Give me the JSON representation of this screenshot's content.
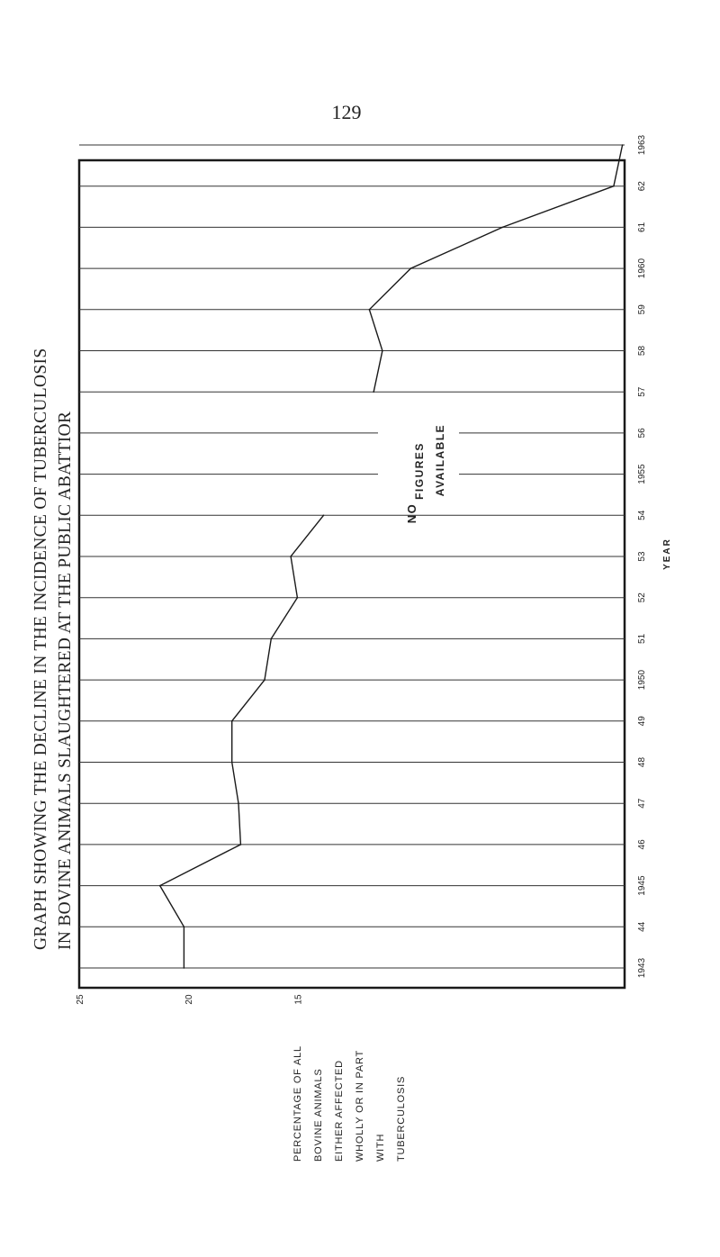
{
  "page_number": "129",
  "title_lines": [
    "GRAPH SHOWING THE DECLINE IN THE INCIDENCE OF TUBERCULOSIS",
    "IN BOVINE ANIMALS SLAUGHTERED AT THE PUBLIC ABATTIOR"
  ],
  "ylabel_lines": [
    "PERCENTAGE OF ALL",
    "BOVINE ANIMALS",
    "EITHER AFFECTED",
    "WHOLLY OR IN PART",
    "WITH",
    "TUBERCULOSIS"
  ],
  "annotation_lines": [
    "NO",
    "FIGURES",
    "AVAILABLE"
  ],
  "chart_data": {
    "type": "line",
    "title": "GRAPH SHOWING THE DECLINE IN THE INCIDENCE OF TUBERCULOSIS IN BOVINE ANIMALS SLAUGHTERED AT THE PUBLIC ABATTIOR",
    "xlabel": "YEAR",
    "ylabel": "PERCENTAGE OF ALL BOVINE ANIMALS EITHER AFFECTED WHOLLY OR IN PART WITH TUBERCULOSIS",
    "x": [
      "1943",
      "44",
      "1945",
      "46",
      "47",
      "48",
      "49",
      "1950",
      "51",
      "52",
      "53",
      "54",
      "1955",
      "56",
      "57",
      "58",
      "59",
      "1960",
      "61",
      "62",
      "1963"
    ],
    "y_tick_labels": [
      "25",
      "20",
      "15"
    ],
    "ylim": [
      0,
      25
    ],
    "y_direction": "decreasing",
    "values": [
      20.2,
      20.2,
      21.3,
      17.6,
      17.7,
      18.0,
      18.0,
      16.5,
      16.2,
      15.0,
      15.3,
      13.8,
      null,
      null,
      11.5,
      11.1,
      11.7,
      9.8,
      5.6,
      0.5,
      0.1
    ],
    "gap": {
      "from": "54",
      "to": "57",
      "label": "NO FIGURES AVAILABLE"
    },
    "orientation": "rotated",
    "grid": true,
    "legend": "none"
  }
}
